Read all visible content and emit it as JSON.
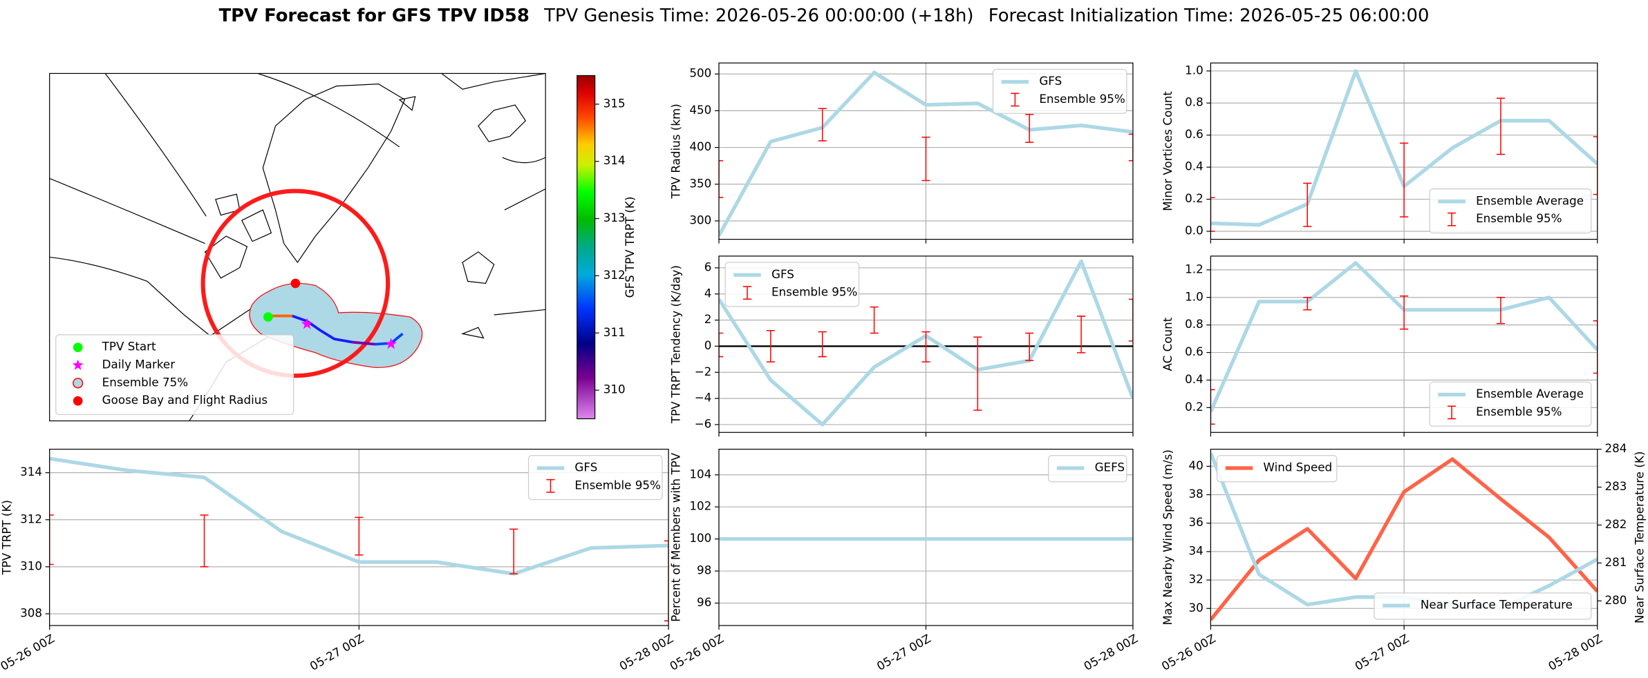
{
  "title": {
    "main": "TPV Forecast for GFS TPV ID58",
    "genesis": "TPV Genesis Time: 2026-05-26 00:00:00 (+18h)",
    "init": "Forecast Initialization Time: 2026-05-25 06:00:00"
  },
  "chart_data": [
    {
      "type": "map",
      "legend": "lower left",
      "legend_entries": [
        {
          "name": "TPV Start",
          "marker": "circle",
          "color": "#00ff00"
        },
        {
          "name": "Daily Marker",
          "marker": "star",
          "color": "#ff00ff"
        },
        {
          "name": "Ensemble 75%",
          "marker": "circle",
          "color": "#add8e6",
          "edgecolor": "#ff0000"
        },
        {
          "name": "Goose Bay and Flight Radius",
          "marker": "circle",
          "color": "#ff0000"
        }
      ],
      "colorbar": {
        "label": "GFS TPV TRPT (K)",
        "lim": [
          309.5,
          315.5
        ],
        "ticks": [
          310,
          311,
          312,
          313,
          314,
          315
        ]
      }
    },
    {
      "type": "line",
      "ylabel": "TPV Radius (km)",
      "grid": true,
      "legend": "upper right",
      "xlim": [
        0,
        48
      ],
      "xticks": [
        0,
        24,
        48
      ],
      "ylim": [
        275,
        515
      ],
      "yticks": [
        300,
        350,
        400,
        450,
        500
      ],
      "x": [
        0,
        6,
        12,
        18,
        24,
        30,
        36,
        42,
        48
      ],
      "series": [
        {
          "name": "GFS",
          "color": "#add8e6",
          "values": [
            280,
            408,
            427,
            502,
            458,
            460,
            424,
            430,
            421
          ]
        }
      ],
      "errorbars": {
        "name": "Ensemble 95%",
        "color": "#ff0000",
        "x": [
          0,
          12,
          24,
          36,
          48
        ],
        "low": [
          332,
          409,
          355,
          407,
          382
        ],
        "high": [
          382,
          453,
          414,
          445,
          418
        ]
      }
    },
    {
      "type": "line",
      "ylabel": "TPV TRPT Tendency (K/day)",
      "grid": true,
      "legend": "upper left",
      "zero_line": true,
      "xlim": [
        0,
        48
      ],
      "xticks": [
        0,
        24,
        48
      ],
      "ylim": [
        -6.6,
        6.9
      ],
      "yticks": [
        {
          "value": -6,
          "label": "−6"
        },
        {
          "value": -4,
          "label": "−4"
        },
        {
          "value": -2,
          "label": "−2"
        },
        0,
        2,
        4,
        6
      ],
      "x": [
        0,
        6,
        12,
        18,
        24,
        30,
        36,
        42,
        48
      ],
      "series": [
        {
          "name": "GFS",
          "color": "#add8e6",
          "values": [
            3.6,
            -2.6,
            -6.0,
            -1.6,
            0.8,
            -1.8,
            -1.1,
            6.5,
            -4.0
          ]
        }
      ],
      "errorbars": {
        "name": "Ensemble 95%",
        "color": "#ff0000",
        "x": [
          0,
          6,
          12,
          18,
          24,
          30,
          36,
          42,
          48
        ],
        "low": [
          -0.8,
          -1.2,
          -0.8,
          1.0,
          -1.2,
          -4.9,
          -1.1,
          -0.5,
          0.4
        ],
        "high": [
          1.0,
          1.2,
          1.1,
          3.0,
          1.1,
          0.7,
          1.0,
          2.3,
          3.6
        ]
      }
    },
    {
      "type": "line",
      "ylabel": "Percent of Members with TPV",
      "grid": true,
      "legend": "upper right",
      "xlim": [
        0,
        48
      ],
      "xticks": [
        {
          "value": 0,
          "label": "05-26 00Z"
        },
        {
          "value": 24,
          "label": "05-27 00Z"
        },
        {
          "value": 48,
          "label": "05-28 00Z"
        }
      ],
      "ylim": [
        94.6,
        105.6
      ],
      "yticks": [
        96,
        98,
        100,
        102,
        104
      ],
      "x": [
        0,
        6,
        12,
        18,
        24,
        30,
        36,
        42,
        48
      ],
      "series": [
        {
          "name": "GEFS",
          "color": "#add8e6",
          "values": [
            100,
            100,
            100,
            100,
            100,
            100,
            100,
            100,
            100
          ]
        }
      ]
    },
    {
      "type": "line",
      "ylabel": "Minor Vortices Count",
      "grid": true,
      "legend": "lower right",
      "xlim": [
        0,
        48
      ],
      "xticks": [
        0,
        24,
        48
      ],
      "ylim": [
        -0.05,
        1.05
      ],
      "yticks": [
        {
          "value": 0,
          "label": "0.0"
        },
        0.2,
        0.4,
        0.6,
        0.8,
        {
          "value": 1,
          "label": "1.0"
        }
      ],
      "x": [
        0,
        6,
        12,
        18,
        24,
        30,
        36,
        42,
        48
      ],
      "series": [
        {
          "name": "Ensemble Average",
          "color": "#add8e6",
          "values": [
            0.05,
            0.04,
            0.17,
            1.0,
            0.28,
            0.52,
            0.69,
            0.69,
            0.42
          ]
        }
      ],
      "errorbars": {
        "name": "Ensemble 95%",
        "color": "#ff0000",
        "x": [
          0,
          12,
          24,
          36,
          48
        ],
        "low": [
          0.0,
          0.03,
          0.09,
          0.48,
          0.23
        ],
        "high": [
          0.21,
          0.3,
          0.55,
          0.83,
          0.59
        ]
      }
    },
    {
      "type": "line",
      "ylabel": "AC Count",
      "grid": true,
      "legend": "lower right",
      "xlim": [
        0,
        48
      ],
      "xticks": [
        0,
        24,
        48
      ],
      "ylim": [
        0.02,
        1.3
      ],
      "yticks": [
        0.2,
        0.4,
        0.6,
        0.8,
        {
          "value": 1,
          "label": "1.0"
        },
        1.2
      ],
      "x": [
        0,
        6,
        12,
        18,
        24,
        30,
        36,
        42,
        48
      ],
      "series": [
        {
          "name": "Ensemble Average",
          "color": "#add8e6",
          "values": [
            0.17,
            0.97,
            0.97,
            1.25,
            0.91,
            0.91,
            0.91,
            1.0,
            0.62
          ]
        }
      ],
      "errorbars": {
        "name": "Ensemble 95%",
        "color": "#ff0000",
        "x": [
          0,
          12,
          24,
          36,
          48
        ],
        "low": [
          0.08,
          0.91,
          0.77,
          0.81,
          0.45
        ],
        "high": [
          0.33,
          1.0,
          1.01,
          1.0,
          0.83
        ]
      }
    },
    {
      "type": "line",
      "ylabel": "Max Nearby Wind Speed (m/s)",
      "ycolor": "#ff6347",
      "y2label": "Near Surface Temperature (K)",
      "y2color": "#4169e1",
      "grid": true,
      "xlim": [
        0,
        48
      ],
      "xticks": [
        {
          "value": 0,
          "label": "05-26 00Z"
        },
        {
          "value": 24,
          "label": "05-27 00Z"
        },
        {
          "value": 48,
          "label": "05-28 00Z"
        }
      ],
      "ylim": [
        28.8,
        41.2
      ],
      "yticks": [
        30,
        32,
        34,
        36,
        38,
        40
      ],
      "y2lim": [
        279.35,
        284
      ],
      "y2ticks": [
        280,
        281,
        282,
        283,
        284
      ],
      "x": [
        0,
        6,
        12,
        18,
        24,
        30,
        36,
        42,
        48
      ],
      "series": [
        {
          "name": "Wind Speed",
          "color": "#ff6347",
          "legend": "upper left",
          "values": [
            29.2,
            33.4,
            35.6,
            32.1,
            38.2,
            40.5,
            37.7,
            35.0,
            31.2
          ]
        },
        {
          "name": "Near Surface Temperature",
          "color": "#add8e6",
          "axis": "y2",
          "legend": "lower right",
          "values": [
            283.9,
            280.7,
            279.9,
            280.1,
            280.1,
            279.9,
            279.8,
            280.4,
            281.1
          ]
        }
      ]
    },
    {
      "type": "line",
      "ylabel": "TPV TRPT (K)",
      "grid": true,
      "legend": "upper right",
      "xlim": [
        0,
        48
      ],
      "xticks": [
        {
          "value": 0,
          "label": "05-26 00Z"
        },
        {
          "value": 24,
          "label": "05-27 00Z"
        },
        {
          "value": 48,
          "label": "05-28 00Z"
        }
      ],
      "ylim": [
        307.5,
        315
      ],
      "yticks": [
        308,
        310,
        312,
        314
      ],
      "x": [
        0,
        6,
        12,
        18,
        24,
        30,
        36,
        42,
        48
      ],
      "series": [
        {
          "name": "GFS",
          "color": "#add8e6",
          "values": [
            314.6,
            314.1,
            313.8,
            311.5,
            310.2,
            310.2,
            309.7,
            310.8,
            310.9
          ]
        }
      ],
      "errorbars": {
        "name": "Ensemble 95%",
        "color": "#ff0000",
        "x": [
          0,
          12,
          24,
          36,
          48
        ],
        "low": [
          310.1,
          310.0,
          310.5,
          309.7,
          307.7
        ],
        "high": [
          312.2,
          312.2,
          312.1,
          311.6,
          311.1
        ]
      }
    }
  ]
}
